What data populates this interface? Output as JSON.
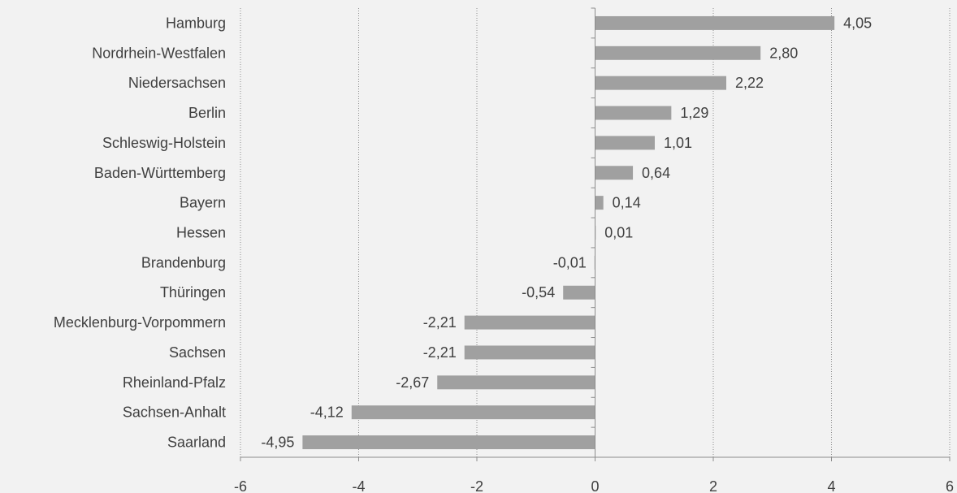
{
  "chart_data": {
    "type": "bar",
    "orientation": "horizontal",
    "categories": [
      "Hamburg",
      "Nordrhein-Westfalen",
      "Niedersachsen",
      "Berlin",
      "Schleswig-Holstein",
      "Baden-Württemberg",
      "Bayern",
      "Hessen",
      "Brandenburg",
      "Thüringen",
      "Mecklenburg-Vorpommern",
      "Sachsen",
      "Rheinland-Pfalz",
      "Sachsen-Anhalt",
      "Saarland"
    ],
    "values": [
      4.05,
      2.8,
      2.22,
      1.29,
      1.01,
      0.64,
      0.14,
      0.01,
      -0.01,
      -0.54,
      -2.21,
      -2.21,
      -2.67,
      -4.12,
      -4.95
    ],
    "data_labels": [
      "4,05",
      "2,80",
      "2,22",
      "1,29",
      "1,01",
      "0,64",
      "0,14",
      "0,01",
      "-0,01",
      "-0,54",
      "-2,21",
      "-2,21",
      "-2,67",
      "-4,12",
      "-4,95"
    ],
    "xlim": [
      -6,
      6
    ],
    "x_ticks": [
      -6,
      -4,
      -2,
      0,
      2,
      4,
      6
    ],
    "x_tick_labels": [
      "-6",
      "-4",
      "-2",
      "0",
      "2",
      "4",
      "6"
    ],
    "grid": "vertical dotted",
    "legend": "none",
    "bar_color": "#a0a0a0",
    "text_color": "#404040",
    "background": "#f2f2f2"
  }
}
